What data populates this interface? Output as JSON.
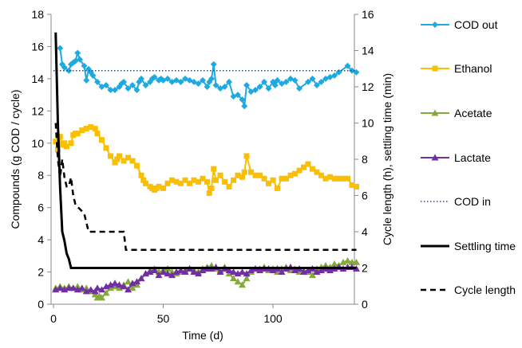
{
  "chart_data": {
    "type": "line",
    "xlabel": "Time (d)",
    "ylabel_left": "Compounds (g COD / cycle)",
    "ylabel_right": "Cycle length (h), settling time (min)",
    "xlim": [
      0,
      138
    ],
    "ylim_left": [
      0,
      18
    ],
    "ylim_right": [
      0,
      16
    ],
    "x_ticks": [
      "0",
      "50",
      "100"
    ],
    "y_ticks_left": [
      "0",
      "2",
      "4",
      "6",
      "8",
      "10",
      "12",
      "14",
      "16",
      "18"
    ],
    "y_ticks_right": [
      "0",
      "2",
      "4",
      "6",
      "8",
      "10",
      "12",
      "14",
      "16"
    ],
    "grid": false,
    "legend_position": "right",
    "series": [
      {
        "name": "COD out",
        "axis": "left",
        "color": "#1fa9e1",
        "marker": "diamond",
        "line": "solid",
        "x": [
          3,
          4,
          5,
          7,
          8,
          9,
          10,
          11,
          12,
          14,
          15,
          16,
          17,
          18,
          20,
          22,
          24,
          26,
          28,
          30,
          31,
          32,
          34,
          36,
          38,
          39,
          40,
          42,
          44,
          45,
          46,
          48,
          49,
          50,
          52,
          54,
          56,
          58,
          60,
          62,
          64,
          66,
          68,
          70,
          71,
          72,
          73,
          74,
          76,
          78,
          80,
          82,
          84,
          86,
          87,
          88,
          90,
          92,
          94,
          96,
          98,
          100,
          101,
          102,
          104,
          106,
          108,
          110,
          112,
          116,
          118,
          120,
          122,
          124,
          126,
          128,
          130,
          134,
          136,
          138
        ],
        "y": [
          15.9,
          14.9,
          14.7,
          14.5,
          14.9,
          15.0,
          15.1,
          15.6,
          15.2,
          14.8,
          13.9,
          14.6,
          14.4,
          14.2,
          13.8,
          13.5,
          13.6,
          13.3,
          13.3,
          13.5,
          13.7,
          13.8,
          13.4,
          13.6,
          13.3,
          13.8,
          14.0,
          13.6,
          13.8,
          14.0,
          14.1,
          13.9,
          14.0,
          13.9,
          14.0,
          13.8,
          13.9,
          13.8,
          14.0,
          13.9,
          13.8,
          13.7,
          13.9,
          13.5,
          13.8,
          14.0,
          14.9,
          13.6,
          13.4,
          13.5,
          13.8,
          12.9,
          13.0,
          12.7,
          12.3,
          13.6,
          13.2,
          13.3,
          13.5,
          13.8,
          13.4,
          13.8,
          13.6,
          13.9,
          13.7,
          13.8,
          14.0,
          13.9,
          13.4,
          13.8,
          14.0,
          13.6,
          13.8,
          14.0,
          14.1,
          14.2,
          14.4,
          14.8,
          14.5,
          14.4
        ]
      },
      {
        "name": "Ethanol",
        "axis": "left",
        "color": "#f9bf00",
        "marker": "square",
        "line": "solid",
        "x": [
          1,
          2,
          3,
          4,
          5,
          6,
          8,
          9,
          10,
          11,
          13,
          15,
          17,
          19,
          20,
          22,
          24,
          26,
          28,
          29,
          30,
          32,
          34,
          36,
          38,
          40,
          41,
          42,
          44,
          45,
          46,
          47,
          48,
          50,
          52,
          54,
          56,
          58,
          60,
          62,
          64,
          66,
          68,
          70,
          71,
          72,
          73,
          74,
          76,
          78,
          80,
          82,
          84,
          86,
          87,
          88,
          90,
          92,
          94,
          96,
          98,
          100,
          102,
          104,
          106,
          108,
          110,
          112,
          114,
          116,
          118,
          120,
          122,
          124,
          126,
          128,
          130,
          132,
          134,
          136,
          138
        ],
        "y": [
          10.1,
          9.6,
          10.4,
          9.9,
          10.0,
          9.8,
          10.0,
          10.5,
          10.6,
          10.6,
          10.8,
          10.9,
          11.0,
          10.9,
          10.6,
          10.2,
          9.7,
          9.2,
          8.8,
          9.0,
          9.2,
          8.9,
          9.1,
          8.9,
          8.6,
          8.0,
          7.7,
          7.5,
          7.3,
          7.2,
          7.1,
          7.2,
          7.3,
          7.2,
          7.5,
          7.7,
          7.6,
          7.5,
          7.7,
          7.5,
          7.7,
          7.6,
          7.8,
          7.6,
          6.9,
          7.2,
          8.4,
          7.7,
          8.0,
          7.6,
          7.3,
          7.7,
          8.0,
          7.9,
          8.2,
          9.2,
          8.2,
          8.0,
          8.0,
          7.8,
          7.5,
          7.7,
          7.2,
          7.8,
          7.8,
          8.0,
          8.1,
          8.3,
          8.5,
          8.7,
          8.4,
          8.2,
          8.0,
          7.8,
          7.9,
          7.8,
          7.8,
          7.8,
          7.8,
          7.4,
          7.3
        ]
      },
      {
        "name": "Acetate",
        "axis": "left",
        "color": "#86a93e",
        "marker": "triangle",
        "line": "solid",
        "x": [
          1,
          3,
          5,
          7,
          9,
          11,
          13,
          15,
          17,
          19,
          20,
          21,
          22,
          24,
          26,
          28,
          30,
          32,
          34,
          36,
          38,
          40,
          42,
          44,
          46,
          48,
          50,
          52,
          54,
          56,
          58,
          60,
          62,
          64,
          66,
          68,
          70,
          72,
          74,
          76,
          78,
          80,
          82,
          84,
          86,
          88,
          90,
          92,
          94,
          96,
          98,
          100,
          102,
          104,
          106,
          108,
          110,
          112,
          114,
          116,
          118,
          120,
          122,
          124,
          126,
          128,
          130,
          132,
          134,
          136,
          138
        ],
        "y": [
          1.0,
          1.1,
          1.0,
          1.1,
          1.0,
          1.1,
          0.9,
          1.0,
          0.8,
          0.6,
          0.4,
          0.5,
          0.4,
          0.7,
          1.0,
          1.1,
          1.0,
          1.2,
          1.4,
          1.0,
          1.2,
          1.6,
          1.9,
          2.1,
          2.2,
          2.0,
          2.1,
          2.2,
          2.0,
          1.9,
          2.0,
          2.1,
          2.2,
          2.1,
          2.0,
          2.2,
          2.3,
          2.4,
          2.2,
          2.1,
          2.3,
          1.9,
          1.6,
          1.4,
          1.2,
          1.6,
          2.0,
          2.2,
          2.2,
          2.3,
          2.1,
          2.2,
          2.0,
          2.2,
          2.3,
          2.1,
          2.2,
          2.0,
          2.1,
          2.0,
          1.8,
          2.2,
          2.3,
          2.4,
          2.3,
          2.5,
          2.4,
          2.6,
          2.7,
          2.6,
          2.6
        ]
      },
      {
        "name": "Lactate",
        "axis": "left",
        "color": "#7030a0",
        "marker": "triangle",
        "line": "solid",
        "x": [
          1,
          3,
          5,
          7,
          9,
          11,
          13,
          15,
          17,
          19,
          20,
          22,
          24,
          26,
          28,
          30,
          32,
          34,
          36,
          38,
          40,
          42,
          44,
          46,
          48,
          50,
          52,
          54,
          56,
          58,
          60,
          62,
          64,
          66,
          68,
          70,
          72,
          74,
          76,
          78,
          80,
          82,
          84,
          86,
          88,
          90,
          92,
          94,
          96,
          98,
          100,
          102,
          104,
          106,
          108,
          110,
          112,
          114,
          116,
          118,
          120,
          122,
          124,
          126,
          128,
          130,
          132,
          134,
          136,
          138
        ],
        "y": [
          0.9,
          1.0,
          0.9,
          1.0,
          1.0,
          0.9,
          1.0,
          0.8,
          0.9,
          0.8,
          1.0,
          0.9,
          1.1,
          1.2,
          1.3,
          1.2,
          1.1,
          0.9,
          1.3,
          1.4,
          1.6,
          1.9,
          2.0,
          2.1,
          1.8,
          2.0,
          1.9,
          1.8,
          2.0,
          2.1,
          2.0,
          2.2,
          2.0,
          1.9,
          2.1,
          2.2,
          2.2,
          2.3,
          2.0,
          2.2,
          2.1,
          2.0,
          1.9,
          2.0,
          1.9,
          2.1,
          2.2,
          2.1,
          2.2,
          2.2,
          2.1,
          2.2,
          2.0,
          2.2,
          2.3,
          2.1,
          2.2,
          2.0,
          2.1,
          2.2,
          2.0,
          2.1,
          2.2,
          2.1,
          2.2,
          2.3,
          2.2,
          2.3,
          2.3,
          2.2
        ]
      },
      {
        "name": "COD in",
        "axis": "left",
        "color": "#1f4e79",
        "marker": "none",
        "line": "dotted",
        "x": [
          0,
          138
        ],
        "y": [
          14.5,
          14.5
        ]
      },
      {
        "name": "Settling time",
        "axis": "right",
        "color": "#000000",
        "marker": "none",
        "line": "solid",
        "x": [
          1,
          2,
          3,
          4,
          5,
          6,
          7,
          8,
          9,
          138
        ],
        "y": [
          15.0,
          10.0,
          6.5,
          4.0,
          3.5,
          2.8,
          2.5,
          2.0,
          2.0,
          2.0
        ]
      },
      {
        "name": "Cycle length",
        "axis": "right",
        "color": "#000000",
        "marker": "none",
        "line": "dashed",
        "x": [
          1,
          2,
          3,
          4,
          5,
          6,
          7,
          8,
          9,
          10,
          14,
          15,
          16,
          32,
          33,
          34,
          138
        ],
        "y": [
          10.0,
          8.0,
          7.0,
          8.0,
          7.0,
          6.5,
          6.5,
          7.0,
          6.0,
          5.5,
          5.0,
          4.5,
          4.0,
          4.0,
          3.0,
          3.0,
          3.0
        ]
      }
    ]
  }
}
